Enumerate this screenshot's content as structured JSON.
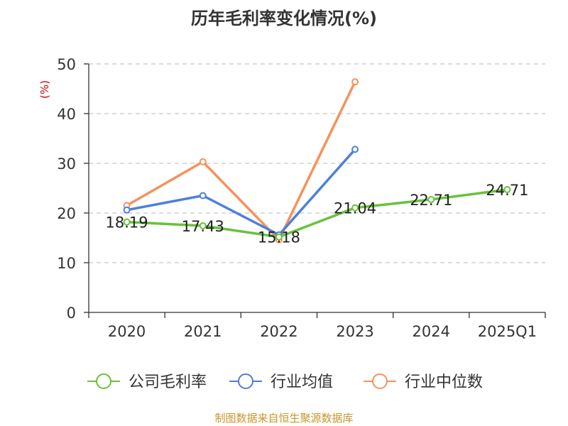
{
  "title": "历年毛利率变化情况(%)",
  "source": "制图数据来自恒生聚源数据库",
  "colors": {
    "company": "#67c23a",
    "industry_avg": "#4e7fdb",
    "industry_median": "#f5925c",
    "axis": "#333333",
    "grid": "#c8c8c8",
    "unit": "#cc0000"
  },
  "chart_data": {
    "type": "line",
    "title": "历年毛利率变化情况(%)",
    "ylabel": "(%)",
    "xlabel": "",
    "categories": [
      "2020",
      "2021",
      "2022",
      "2023",
      "2024",
      "2025Q1"
    ],
    "ylim": [
      0,
      50
    ],
    "yticks": [
      0,
      10,
      20,
      30,
      40,
      50
    ],
    "grid": true,
    "grid_style": "dashed",
    "legend_position": "bottom",
    "series": [
      {
        "name": "公司毛利率",
        "color": "#67c23a",
        "values": [
          18.19,
          17.43,
          15.18,
          21.04,
          22.71,
          24.71
        ],
        "labels": [
          "18.19",
          "17.43",
          "15.18",
          "21.04",
          "22.71",
          "24.71"
        ]
      },
      {
        "name": "行业均值",
        "color": "#4e7fdb",
        "values": [
          20.6,
          23.5,
          15.6,
          32.8,
          null,
          null
        ]
      },
      {
        "name": "行业中位数",
        "color": "#f5925c",
        "values": [
          21.5,
          30.3,
          14.6,
          46.4,
          null,
          null
        ]
      }
    ]
  }
}
